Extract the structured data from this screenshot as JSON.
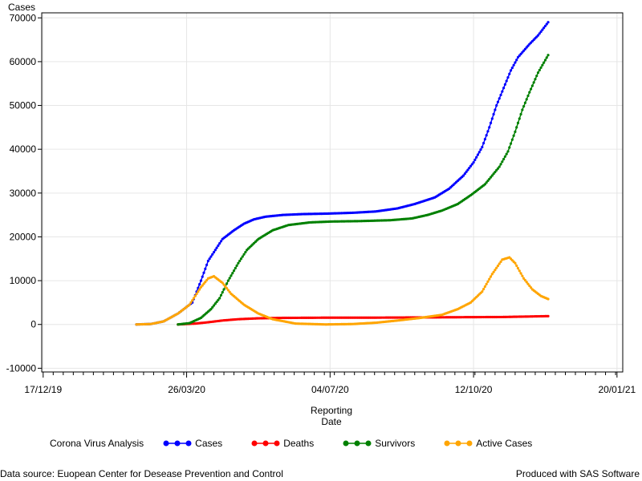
{
  "chart_data": {
    "type": "line",
    "ylabel": "Cases",
    "xlabel": [
      "Reporting",
      "Date"
    ],
    "x_ticks": [
      "17/12/19",
      "26/03/20",
      "04/07/20",
      "12/10/20",
      "20/01/21"
    ],
    "y_ticks": [
      -10000,
      0,
      10000,
      20000,
      30000,
      40000,
      50000,
      60000,
      70000
    ],
    "xlim": [
      "2019-12-17",
      "2021-01-20"
    ],
    "ylim": [
      -10000,
      70000
    ],
    "grid": true,
    "series": [
      {
        "name": "Cases",
        "color": "#0000ff",
        "points": [
          [
            "2020-02-20",
            0
          ],
          [
            "2020-03-01",
            100
          ],
          [
            "2020-03-10",
            700
          ],
          [
            "2020-03-20",
            2500
          ],
          [
            "2020-03-30",
            5000
          ],
          [
            "2020-04-05",
            10000
          ],
          [
            "2020-04-10",
            14500
          ],
          [
            "2020-04-15",
            17000
          ],
          [
            "2020-04-20",
            19500
          ],
          [
            "2020-04-28",
            21500
          ],
          [
            "2020-05-05",
            23000
          ],
          [
            "2020-05-12",
            24000
          ],
          [
            "2020-05-20",
            24600
          ],
          [
            "2020-06-01",
            25000
          ],
          [
            "2020-06-15",
            25200
          ],
          [
            "2020-07-01",
            25300
          ],
          [
            "2020-07-20",
            25500
          ],
          [
            "2020-08-05",
            25800
          ],
          [
            "2020-08-20",
            26500
          ],
          [
            "2020-09-01",
            27500
          ],
          [
            "2020-09-15",
            29000
          ],
          [
            "2020-09-25",
            31000
          ],
          [
            "2020-10-05",
            34000
          ],
          [
            "2020-10-12",
            37000
          ],
          [
            "2020-10-18",
            40500
          ],
          [
            "2020-10-23",
            45000
          ],
          [
            "2020-10-28",
            50000
          ],
          [
            "2020-11-02",
            54000
          ],
          [
            "2020-11-07",
            58000
          ],
          [
            "2020-11-12",
            61000
          ],
          [
            "2020-11-20",
            64000
          ],
          [
            "2020-11-26",
            66000
          ],
          [
            "2020-12-03",
            69000
          ]
        ]
      },
      {
        "name": "Deaths",
        "color": "#ff0000",
        "points": [
          [
            "2020-03-20",
            0
          ],
          [
            "2020-04-01",
            200
          ],
          [
            "2020-04-10",
            500
          ],
          [
            "2020-04-20",
            900
          ],
          [
            "2020-05-01",
            1200
          ],
          [
            "2020-05-15",
            1400
          ],
          [
            "2020-06-01",
            1500
          ],
          [
            "2020-07-01",
            1550
          ],
          [
            "2020-08-01",
            1550
          ],
          [
            "2020-09-01",
            1600
          ],
          [
            "2020-10-01",
            1650
          ],
          [
            "2020-11-01",
            1700
          ],
          [
            "2020-12-03",
            1900
          ]
        ]
      },
      {
        "name": "Survivors",
        "color": "#008000",
        "points": [
          [
            "2020-03-20",
            0
          ],
          [
            "2020-03-28",
            300
          ],
          [
            "2020-04-05",
            1500
          ],
          [
            "2020-04-12",
            3500
          ],
          [
            "2020-04-18",
            6000
          ],
          [
            "2020-04-24",
            10000
          ],
          [
            "2020-05-01",
            14000
          ],
          [
            "2020-05-07",
            17000
          ],
          [
            "2020-05-15",
            19500
          ],
          [
            "2020-05-25",
            21500
          ],
          [
            "2020-06-05",
            22700
          ],
          [
            "2020-06-20",
            23300
          ],
          [
            "2020-07-05",
            23500
          ],
          [
            "2020-07-25",
            23600
          ],
          [
            "2020-08-15",
            23800
          ],
          [
            "2020-08-30",
            24200
          ],
          [
            "2020-09-10",
            25000
          ],
          [
            "2020-09-20",
            26000
          ],
          [
            "2020-10-01",
            27500
          ],
          [
            "2020-10-10",
            29500
          ],
          [
            "2020-10-20",
            32000
          ],
          [
            "2020-10-30",
            36000
          ],
          [
            "2020-11-05",
            39500
          ],
          [
            "2020-11-10",
            44000
          ],
          [
            "2020-11-15",
            49000
          ],
          [
            "2020-11-20",
            53000
          ],
          [
            "2020-11-26",
            57500
          ],
          [
            "2020-12-03",
            61500
          ]
        ]
      },
      {
        "name": "Active Cases",
        "color": "#ffa500",
        "points": [
          [
            "2020-02-20",
            0
          ],
          [
            "2020-03-01",
            100
          ],
          [
            "2020-03-10",
            700
          ],
          [
            "2020-03-20",
            2500
          ],
          [
            "2020-03-28",
            4500
          ],
          [
            "2020-04-05",
            8500
          ],
          [
            "2020-04-10",
            10500
          ],
          [
            "2020-04-14",
            11000
          ],
          [
            "2020-04-20",
            9500
          ],
          [
            "2020-04-26",
            7000
          ],
          [
            "2020-05-05",
            4500
          ],
          [
            "2020-05-15",
            2500
          ],
          [
            "2020-05-25",
            1200
          ],
          [
            "2020-06-10",
            200
          ],
          [
            "2020-07-01",
            0
          ],
          [
            "2020-07-20",
            100
          ],
          [
            "2020-08-05",
            400
          ],
          [
            "2020-08-20",
            900
          ],
          [
            "2020-09-05",
            1500
          ],
          [
            "2020-09-20",
            2200
          ],
          [
            "2020-10-01",
            3500
          ],
          [
            "2020-10-10",
            5000
          ],
          [
            "2020-10-18",
            7500
          ],
          [
            "2020-10-25",
            11500
          ],
          [
            "2020-11-01",
            14800
          ],
          [
            "2020-11-06",
            15300
          ],
          [
            "2020-11-10",
            14000
          ],
          [
            "2020-11-16",
            10500
          ],
          [
            "2020-11-22",
            8000
          ],
          [
            "2020-11-28",
            6500
          ],
          [
            "2020-12-03",
            5800
          ]
        ]
      }
    ]
  },
  "legend": {
    "title": "Corona Virus Analysis"
  },
  "footnotes": {
    "left": "Data source: Euopean Center for Desease Prevention and Control",
    "right": "Produced with SAS Software"
  }
}
